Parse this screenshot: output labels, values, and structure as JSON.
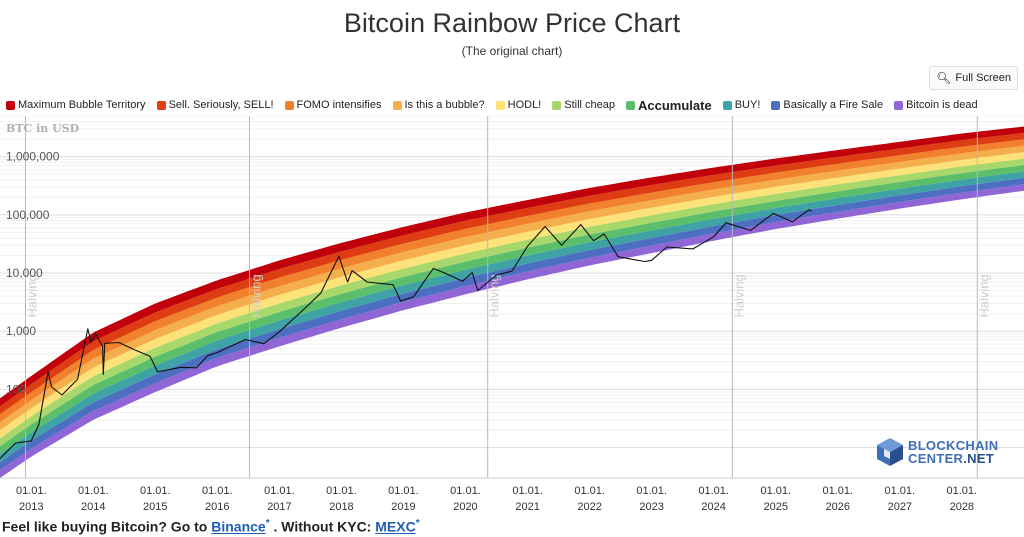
{
  "header": {
    "title": "Bitcoin Rainbow Price Chart",
    "subtitle": "(The original chart)",
    "fullscreen_label": "Full Screen"
  },
  "legend": [
    {
      "label": "Maximum Bubble Territory",
      "color": "#c0000b",
      "bold": false
    },
    {
      "label": "Sell. Seriously, SELL!",
      "color": "#de3c12",
      "bold": false
    },
    {
      "label": "FOMO intensifies",
      "color": "#f1812c",
      "bold": false
    },
    {
      "label": "Is this a bubble?",
      "color": "#f5ae4c",
      "bold": false
    },
    {
      "label": "HODL!",
      "color": "#fde279",
      "bold": false
    },
    {
      "label": "Still cheap",
      "color": "#a8d86b",
      "bold": false
    },
    {
      "label": "Accumulate",
      "color": "#5bbe6a",
      "bold": true
    },
    {
      "label": "BUY!",
      "color": "#3fa2a5",
      "bold": false
    },
    {
      "label": "Basically a Fire Sale",
      "color": "#4c6fc2",
      "bold": false
    },
    {
      "label": "Bitcoin is dead",
      "color": "#9065d6",
      "bold": false
    }
  ],
  "chart_data": {
    "type": "line",
    "title": "Bitcoin Rainbow Price Chart",
    "subtitle": "(The original chart)",
    "ylabel": "BTC in USD",
    "yscale": "log",
    "ylim": [
      3,
      5000000
    ],
    "xlim": [
      "2012-07-01",
      "2029-01-01"
    ],
    "y_ticks": [
      {
        "value": 100,
        "label": "100"
      },
      {
        "value": 1000,
        "label": "1,000"
      },
      {
        "value": 10000,
        "label": "10,000"
      },
      {
        "value": 100000,
        "label": "100,000"
      },
      {
        "value": 1000000,
        "label": "1,000,000"
      }
    ],
    "x_ticks": [
      {
        "date": "2013-01-01",
        "line1": "01.01.",
        "line2": "2013"
      },
      {
        "date": "2014-01-01",
        "line1": "01.01.",
        "line2": "2014"
      },
      {
        "date": "2015-01-01",
        "line1": "01.01.",
        "line2": "2015"
      },
      {
        "date": "2016-01-01",
        "line1": "01.01.",
        "line2": "2016"
      },
      {
        "date": "2017-01-01",
        "line1": "01.01.",
        "line2": "2017"
      },
      {
        "date": "2018-01-01",
        "line1": "01.01.",
        "line2": "2018"
      },
      {
        "date": "2019-01-01",
        "line1": "01.01.",
        "line2": "2019"
      },
      {
        "date": "2020-01-01",
        "line1": "01.01.",
        "line2": "2020"
      },
      {
        "date": "2021-01-01",
        "line1": "01.01.",
        "line2": "2021"
      },
      {
        "date": "2022-01-01",
        "line1": "01.01.",
        "line2": "2022"
      },
      {
        "date": "2023-01-01",
        "line1": "01.01.",
        "line2": "2023"
      },
      {
        "date": "2024-01-01",
        "line1": "01.01.",
        "line2": "2024"
      },
      {
        "date": "2025-01-01",
        "line1": "01.01.",
        "line2": "2025"
      },
      {
        "date": "2026-01-01",
        "line1": "01.01.",
        "line2": "2026"
      },
      {
        "date": "2027-01-01",
        "line1": "01.01.",
        "line2": "2027"
      },
      {
        "date": "2028-01-01",
        "line1": "01.01.",
        "line2": "2028"
      }
    ],
    "halvings": [
      {
        "date": "2012-11-28",
        "label": "Halving"
      },
      {
        "date": "2016-07-09",
        "label": "Halving"
      },
      {
        "date": "2020-05-11",
        "label": "Halving"
      },
      {
        "date": "2024-04-20",
        "label": "Halving"
      },
      {
        "date": "2028-04-01",
        "label": "Halving"
      }
    ],
    "bands": {
      "colors": [
        "#9065d6",
        "#4c6fc2",
        "#3fa2a5",
        "#5bbe6a",
        "#a8d86b",
        "#fde279",
        "#f5ae4c",
        "#f1812c",
        "#de3c12",
        "#c0000b"
      ],
      "lower_boundary": [
        [
          "2012-07-01",
          3
        ],
        [
          "2013-01-01",
          7
        ],
        [
          "2014-01-01",
          30
        ],
        [
          "2015-01-01",
          90
        ],
        [
          "2016-01-01",
          250
        ],
        [
          "2017-01-01",
          550
        ],
        [
          "2018-01-01",
          1150
        ],
        [
          "2019-01-01",
          2300
        ],
        [
          "2020-01-01",
          4300
        ],
        [
          "2021-01-01",
          7800
        ],
        [
          "2022-01-01",
          13500
        ],
        [
          "2023-01-01",
          22000
        ],
        [
          "2024-01-01",
          36000
        ],
        [
          "2025-01-01",
          57000
        ],
        [
          "2026-01-01",
          86000
        ],
        [
          "2027-01-01",
          128000
        ],
        [
          "2028-01-01",
          185000
        ],
        [
          "2029-01-01",
          260000
        ]
      ],
      "upper_boundary": [
        [
          "2012-07-01",
          70
        ],
        [
          "2013-01-01",
          170
        ],
        [
          "2014-01-01",
          950
        ],
        [
          "2015-01-01",
          3000
        ],
        [
          "2016-01-01",
          7500
        ],
        [
          "2017-01-01",
          16500
        ],
        [
          "2018-01-01",
          33000
        ],
        [
          "2019-01-01",
          62000
        ],
        [
          "2020-01-01",
          110000
        ],
        [
          "2021-01-01",
          180000
        ],
        [
          "2022-01-01",
          290000
        ],
        [
          "2023-01-01",
          440000
        ],
        [
          "2024-01-01",
          650000
        ],
        [
          "2025-01-01",
          930000
        ],
        [
          "2026-01-01",
          1300000
        ],
        [
          "2027-01-01",
          1800000
        ],
        [
          "2028-01-01",
          2500000
        ],
        [
          "2029-01-01",
          3300000
        ]
      ]
    },
    "series": [
      {
        "values": [
          [
            "2012-07-01",
            6.5
          ],
          [
            "2012-10-01",
            12
          ],
          [
            "2013-01-01",
            13
          ],
          [
            "2013-02-15",
            25
          ],
          [
            "2013-04-10",
            200
          ],
          [
            "2013-05-01",
            110
          ],
          [
            "2013-07-01",
            80
          ],
          [
            "2013-10-01",
            150
          ],
          [
            "2013-11-30",
            1100
          ],
          [
            "2013-12-20",
            650
          ],
          [
            "2014-01-15",
            900
          ],
          [
            "2014-02-25",
            550
          ],
          [
            "2014-03-01",
            180
          ],
          [
            "2014-03-10",
            620
          ],
          [
            "2014-06-01",
            640
          ],
          [
            "2014-09-01",
            480
          ],
          [
            "2014-12-01",
            370
          ],
          [
            "2015-01-15",
            200
          ],
          [
            "2015-06-01",
            240
          ],
          [
            "2015-09-01",
            235
          ],
          [
            "2015-11-05",
            380
          ],
          [
            "2016-01-01",
            430
          ],
          [
            "2016-06-15",
            720
          ],
          [
            "2016-10-01",
            610
          ],
          [
            "2017-01-01",
            980
          ],
          [
            "2017-06-01",
            2500
          ],
          [
            "2017-09-01",
            4500
          ],
          [
            "2017-12-17",
            19500
          ],
          [
            "2018-02-06",
            7000
          ],
          [
            "2018-03-05",
            11000
          ],
          [
            "2018-06-01",
            7000
          ],
          [
            "2018-11-01",
            6300
          ],
          [
            "2018-12-15",
            3300
          ],
          [
            "2019-03-01",
            3900
          ],
          [
            "2019-06-26",
            12000
          ],
          [
            "2019-09-01",
            10000
          ],
          [
            "2019-12-15",
            7200
          ],
          [
            "2020-02-10",
            10200
          ],
          [
            "2020-03-13",
            5000
          ],
          [
            "2020-07-01",
            9200
          ],
          [
            "2020-10-01",
            10800
          ],
          [
            "2021-01-01",
            29000
          ],
          [
            "2021-04-14",
            63000
          ],
          [
            "2021-07-20",
            30000
          ],
          [
            "2021-11-10",
            68000
          ],
          [
            "2022-01-24",
            36000
          ],
          [
            "2022-03-28",
            47000
          ],
          [
            "2022-06-18",
            19000
          ],
          [
            "2022-11-21",
            15800
          ],
          [
            "2023-01-01",
            16500
          ],
          [
            "2023-04-01",
            28000
          ],
          [
            "2023-09-01",
            26000
          ],
          [
            "2024-01-01",
            42000
          ],
          [
            "2024-03-14",
            73000
          ],
          [
            "2024-08-05",
            54000
          ],
          [
            "2024-12-17",
            106000
          ],
          [
            "2025-04-08",
            76000
          ],
          [
            "2025-07-14",
            122000
          ],
          [
            "2025-08-01",
            115000
          ]
        ]
      }
    ]
  },
  "footer": {
    "prefix": "Feel like buying Bitcoin? Go to ",
    "link1": "Binance",
    "mark1": "*",
    "middle": " . Without KYC: ",
    "link2": "MEXC",
    "mark2": "*"
  },
  "logo": {
    "line1": "BLOCKCHAIN",
    "line2a": "CENTER",
    "line2b": ".NET",
    "color": "#3e6fb6"
  }
}
